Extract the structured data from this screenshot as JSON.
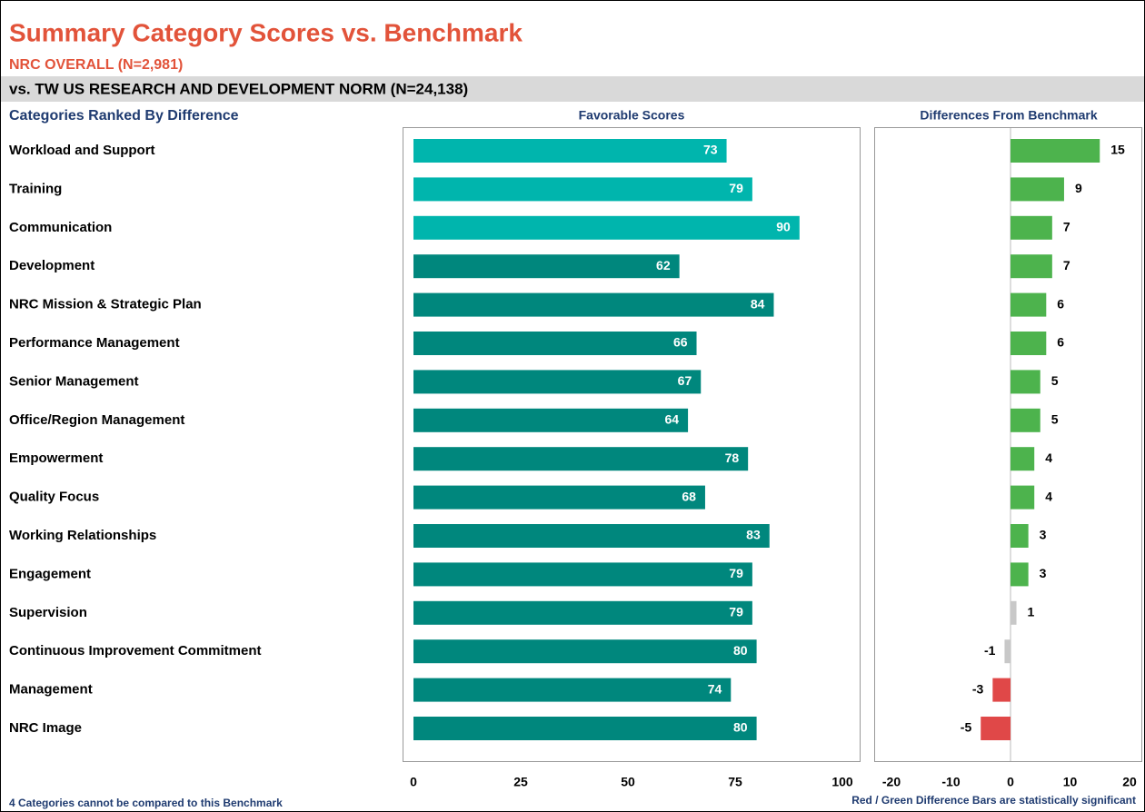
{
  "header": {
    "title": "Summary Category Scores vs. Benchmark",
    "subtitle": "NRC OVERALL (N=2,981)",
    "benchmark": "vs. TW US RESEARCH AND DEVELOPMENT NORM (N=24,138)"
  },
  "row_header": "Categories Ranked By Difference",
  "footnotes": [
    "4 Categories cannot be compared to this Benchmark",
    "Red / Green Difference Bars are statistically significant"
  ],
  "chart_data": [
    {
      "type": "bar",
      "orientation": "horizontal",
      "title": "Favorable Scores",
      "categories": [
        "Workload and Support",
        "Training",
        "Communication",
        "Development",
        "NRC Mission & Strategic Plan",
        "Performance Management",
        "Senior Management",
        "Office/Region Management",
        "Empowerment",
        "Quality Focus",
        "Working Relationships",
        "Engagement",
        "Supervision",
        "Continuous Improvement Commitment",
        "Management",
        "NRC Image"
      ],
      "values": [
        73,
        79,
        90,
        62,
        84,
        66,
        67,
        64,
        78,
        68,
        83,
        79,
        79,
        80,
        74,
        80
      ],
      "colors": [
        "#00b5ad",
        "#00b5ad",
        "#00b5ad",
        "#00877d",
        "#00877d",
        "#00877d",
        "#00877d",
        "#00877d",
        "#00877d",
        "#00877d",
        "#00877d",
        "#00877d",
        "#00877d",
        "#00877d",
        "#00877d",
        "#00877d"
      ],
      "xlim": [
        0,
        100
      ],
      "xticks": [
        0,
        25,
        50,
        75,
        100
      ]
    },
    {
      "type": "bar",
      "orientation": "horizontal",
      "title": "Differences From Benchmark",
      "values": [
        15,
        9,
        7,
        7,
        6,
        6,
        5,
        5,
        4,
        4,
        3,
        3,
        1,
        -1,
        -3,
        -5
      ],
      "colors": [
        "#4db34d",
        "#4db34d",
        "#4db34d",
        "#4db34d",
        "#4db34d",
        "#4db34d",
        "#4db34d",
        "#4db34d",
        "#4db34d",
        "#4db34d",
        "#4db34d",
        "#4db34d",
        "#c8c8c8",
        "#c8c8c8",
        "#e04848",
        "#e04848"
      ],
      "xlim": [
        -20,
        20
      ],
      "xticks": [
        -20,
        -10,
        0,
        10,
        20
      ]
    }
  ]
}
